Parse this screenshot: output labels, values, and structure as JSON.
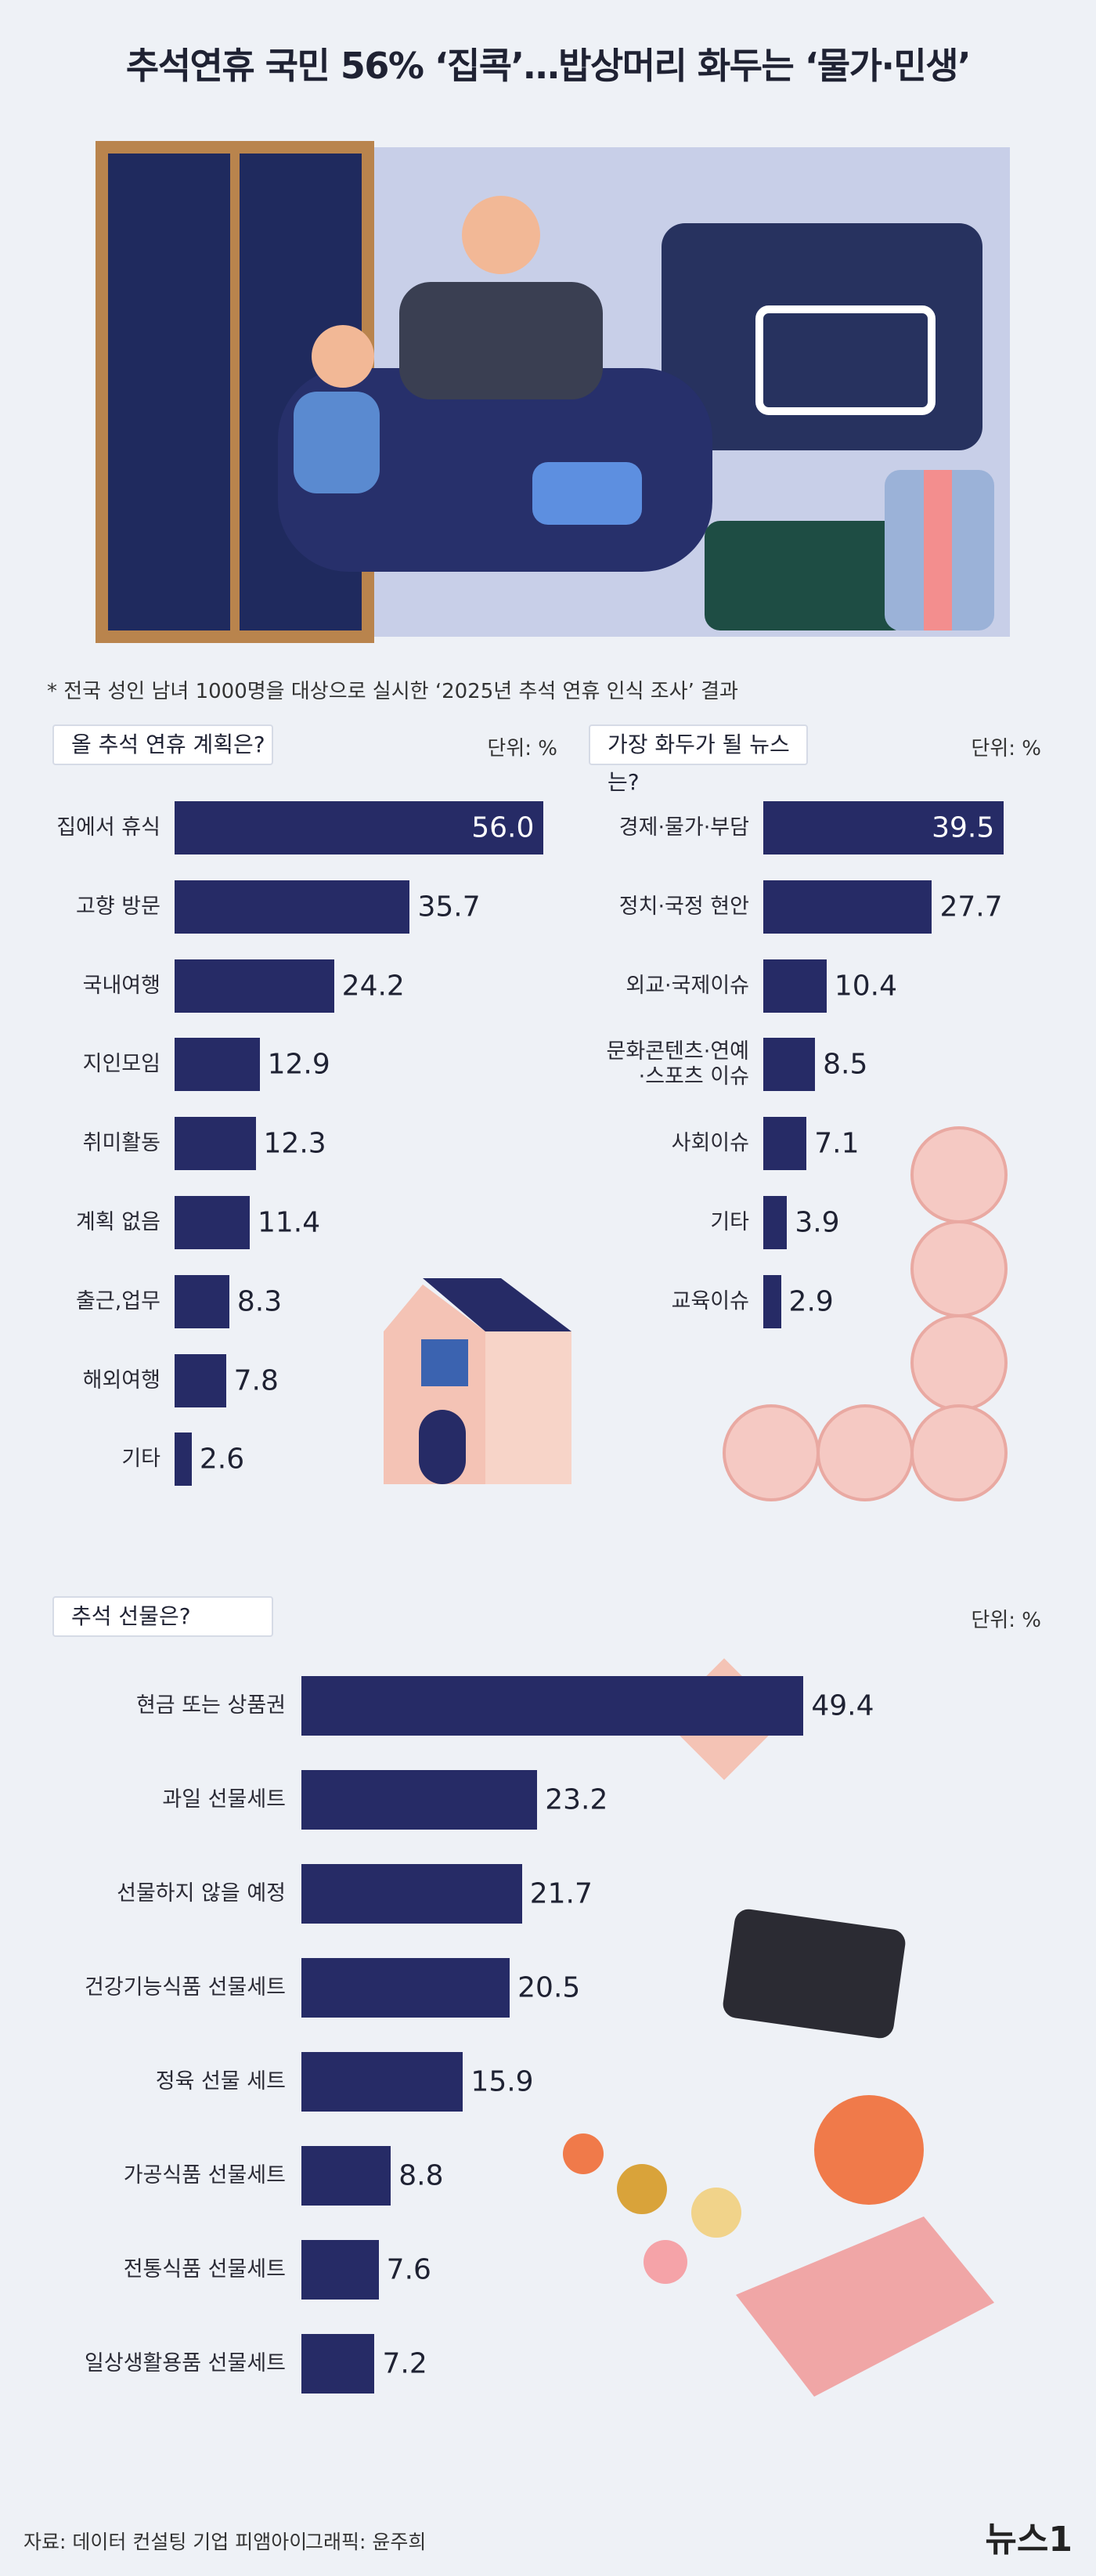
{
  "title": "추석연휴 국민 56% ‘집콕’…밥상머리 화두는 ‘물가·민생’",
  "note": "* 전국 성인 남녀 1000명을 대상으로 실시한 ‘2025년 추석 연휴 인식 조사’ 결과",
  "source": "자료: 데이터 컨설팅 기업 피앰아이",
  "credit": "그래픽: 윤주희",
  "logo": "뉴스1",
  "chart_data": [
    {
      "type": "bar",
      "orientation": "horizontal",
      "title": "올 추석 연휴 계획은?",
      "unit": "단위: %",
      "categories": [
        "집에서 휴식",
        "고향 방문",
        "국내여행",
        "지인모임",
        "취미활동",
        "계획 없음",
        "출근,업무",
        "해외여행",
        "기타"
      ],
      "values": [
        56.0,
        35.7,
        24.2,
        12.9,
        12.3,
        11.4,
        8.3,
        7.8,
        2.6
      ],
      "value_labels": [
        "56.0",
        "35.7",
        "24.2",
        "12.9",
        "12.3",
        "11.4",
        "8.3",
        "7.8",
        "2.6"
      ],
      "color": "#262b66",
      "xlim": [
        0,
        60
      ]
    },
    {
      "type": "bar",
      "orientation": "horizontal",
      "title": "가장 화두가 될 뉴스는?",
      "unit": "단위: %",
      "categories": [
        "경제·물가·부담",
        "정치·국정 현안",
        "외교·국제이슈",
        "문화콘텐츠·연예\n·스포츠 이슈",
        "사회이슈",
        "기타",
        "교육이슈"
      ],
      "values": [
        39.5,
        27.7,
        10.4,
        8.5,
        7.1,
        3.9,
        2.9
      ],
      "value_labels": [
        "39.5",
        "27.7",
        "10.4",
        "8.5",
        "7.1",
        "3.9",
        "2.9"
      ],
      "color": "#262b66",
      "xlim": [
        0,
        45
      ]
    },
    {
      "type": "bar",
      "orientation": "horizontal",
      "title": "추석 선물은?",
      "unit": "단위: %",
      "categories": [
        "현금 또는 상품권",
        "과일 선물세트",
        "선물하지 않을 예정",
        "건강기능식품 선물세트",
        "정육 선물 세트",
        "가공식품 선물세트",
        "전통식품 선물세트",
        "일상생활용품 선물세트"
      ],
      "values": [
        49.4,
        23.2,
        21.7,
        20.5,
        15.9,
        8.8,
        7.6,
        7.2
      ],
      "value_labels": [
        "49.4",
        "23.2",
        "21.7",
        "20.5",
        "15.9",
        "8.8",
        "7.6",
        "7.2"
      ],
      "color": "#262b66",
      "xlim": [
        0,
        60
      ]
    }
  ]
}
